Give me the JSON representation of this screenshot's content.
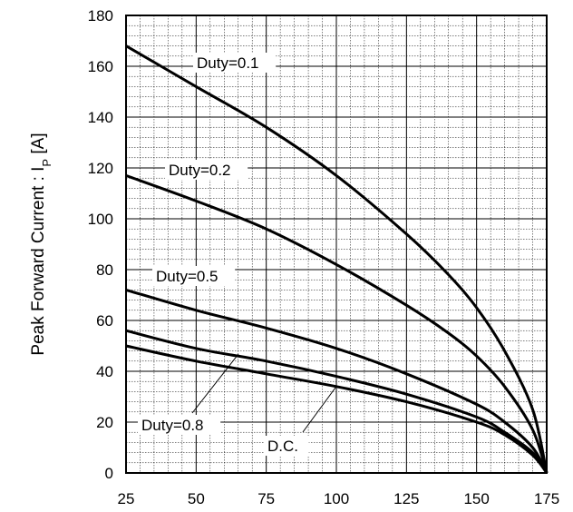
{
  "chart_data": {
    "type": "line",
    "title": "",
    "xlabel": "",
    "ylabel": "Peak Forward Current : I",
    "ylabel_subscript": "P",
    "ylabel_unit": " [A]",
    "xlim": [
      25,
      175
    ],
    "ylim": [
      0,
      180
    ],
    "x_ticks": [
      25,
      50,
      75,
      100,
      125,
      150,
      175
    ],
    "y_ticks": [
      0,
      20,
      40,
      60,
      80,
      100,
      120,
      140,
      160,
      180
    ],
    "grid": true,
    "legend": "none",
    "series": [
      {
        "name": "Duty=0.1",
        "x": [
          25,
          50,
          75,
          100,
          125,
          140,
          150,
          160,
          170,
          175
        ],
        "y": [
          168,
          152,
          136,
          117,
          94,
          78,
          65,
          48,
          25,
          0
        ]
      },
      {
        "name": "Duty=0.2",
        "x": [
          25,
          50,
          75,
          100,
          125,
          140,
          150,
          160,
          170,
          175
        ],
        "y": [
          117,
          107,
          96,
          82,
          66,
          55,
          46,
          34,
          17,
          0
        ]
      },
      {
        "name": "Duty=0.5",
        "x": [
          25,
          50,
          75,
          100,
          125,
          150,
          160,
          170,
          175
        ],
        "y": [
          72,
          64,
          57,
          49,
          39,
          27,
          20,
          10,
          0
        ]
      },
      {
        "name": "Duty=0.8",
        "x": [
          25,
          50,
          75,
          100,
          125,
          150,
          160,
          170,
          175
        ],
        "y": [
          56,
          49,
          44,
          38,
          31,
          22,
          16,
          8,
          0
        ]
      },
      {
        "name": "D.C.",
        "x": [
          25,
          50,
          75,
          100,
          125,
          150,
          160,
          170,
          175
        ],
        "y": [
          50,
          44,
          39,
          34,
          28,
          20,
          15,
          7,
          0
        ]
      }
    ]
  }
}
